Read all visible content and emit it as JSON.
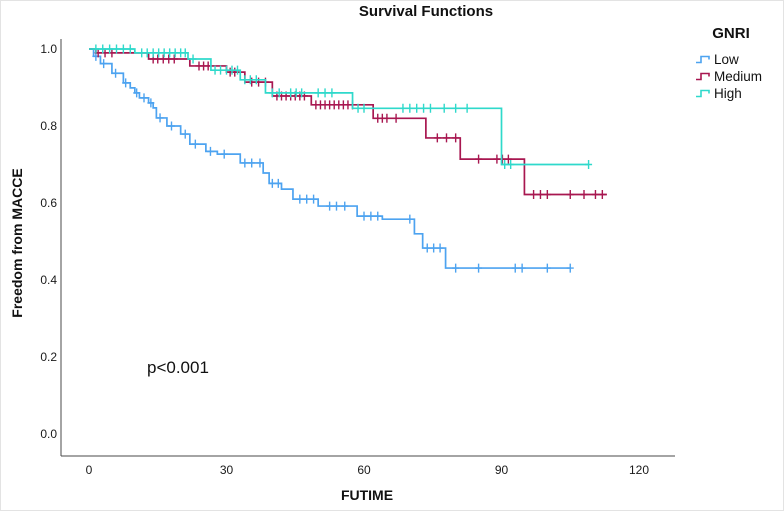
{
  "title": "Survival Functions",
  "annotation": "p<0.001",
  "legend": {
    "title": "GNRI",
    "items": [
      {
        "label": "Low",
        "color": "#4da3f0"
      },
      {
        "label": "Medium",
        "color": "#a81750"
      },
      {
        "label": "High",
        "color": "#2fd9cb"
      }
    ]
  },
  "axes": {
    "x_label": "FUTIME",
    "y_label": "Freedom from MACCE"
  },
  "chart_data": {
    "type": "line",
    "subtype": "kaplan-meier-step",
    "title": "Survival Functions",
    "xlabel": "FUTIME",
    "ylabel": "Freedom from MACCE",
    "xlim": [
      0,
      128
    ],
    "ylim": [
      0,
      1.05
    ],
    "x_ticks": [
      0,
      30,
      60,
      90,
      120
    ],
    "y_ticks": [
      0.0,
      0.2,
      0.4,
      0.6,
      0.8,
      1.0
    ],
    "grid": false,
    "legend_position": "right",
    "annotation": "p<0.001",
    "axis_color": "#4a4a4a",
    "series": [
      {
        "name": "Low",
        "color": "#4da3f0",
        "end_t": 105,
        "points": [
          [
            0,
            1.0
          ],
          [
            1,
            0.981
          ],
          [
            2.5,
            0.962
          ],
          [
            5,
            0.937
          ],
          [
            7.5,
            0.912
          ],
          [
            9,
            0.899
          ],
          [
            10,
            0.886
          ],
          [
            11,
            0.873
          ],
          [
            13,
            0.86
          ],
          [
            14,
            0.847
          ],
          [
            14.7,
            0.821
          ],
          [
            17,
            0.8
          ],
          [
            20,
            0.779
          ],
          [
            22,
            0.753
          ],
          [
            25.5,
            0.734
          ],
          [
            28,
            0.727
          ],
          [
            33,
            0.704
          ],
          [
            38,
            0.678
          ],
          [
            39.3,
            0.651
          ],
          [
            42,
            0.636
          ],
          [
            44.5,
            0.61
          ],
          [
            50,
            0.592
          ],
          [
            58.5,
            0.566
          ],
          [
            64,
            0.558
          ],
          [
            71,
            0.52
          ],
          [
            72.8,
            0.483
          ],
          [
            77.8,
            0.431
          ]
        ],
        "censors": [
          [
            1.5,
            0.981
          ],
          [
            3.2,
            0.962
          ],
          [
            5.8,
            0.937
          ],
          [
            8,
            0.912
          ],
          [
            10.4,
            0.886
          ],
          [
            12,
            0.873
          ],
          [
            13.5,
            0.86
          ],
          [
            15.5,
            0.821
          ],
          [
            18,
            0.8
          ],
          [
            21,
            0.779
          ],
          [
            23.2,
            0.753
          ],
          [
            26.5,
            0.734
          ],
          [
            29.5,
            0.727
          ],
          [
            34,
            0.704
          ],
          [
            35.5,
            0.704
          ],
          [
            37.3,
            0.704
          ],
          [
            40,
            0.651
          ],
          [
            41.3,
            0.651
          ],
          [
            46,
            0.61
          ],
          [
            47.5,
            0.61
          ],
          [
            49,
            0.61
          ],
          [
            52.5,
            0.592
          ],
          [
            54,
            0.592
          ],
          [
            55.8,
            0.592
          ],
          [
            60,
            0.566
          ],
          [
            61.5,
            0.566
          ],
          [
            63,
            0.566
          ],
          [
            70,
            0.558
          ],
          [
            73.8,
            0.483
          ],
          [
            75.2,
            0.483
          ],
          [
            76.6,
            0.483
          ],
          [
            80,
            0.431
          ],
          [
            85,
            0.431
          ],
          [
            93,
            0.431
          ],
          [
            94.5,
            0.431
          ],
          [
            100,
            0.431
          ],
          [
            105,
            0.431
          ]
        ]
      },
      {
        "name": "Medium",
        "color": "#a81750",
        "end_t": 113,
        "points": [
          [
            0,
            1.0
          ],
          [
            1.5,
            0.99
          ],
          [
            13,
            0.974
          ],
          [
            22,
            0.956
          ],
          [
            30,
            0.94
          ],
          [
            34,
            0.914
          ],
          [
            40,
            0.878
          ],
          [
            48.5,
            0.855
          ],
          [
            62,
            0.82
          ],
          [
            73.5,
            0.769
          ],
          [
            81,
            0.714
          ],
          [
            95,
            0.622
          ]
        ],
        "censors": [
          [
            2,
            0.99
          ],
          [
            3.5,
            0.99
          ],
          [
            5,
            0.99
          ],
          [
            14,
            0.974
          ],
          [
            15,
            0.974
          ],
          [
            16.2,
            0.974
          ],
          [
            17.4,
            0.974
          ],
          [
            18.6,
            0.974
          ],
          [
            24,
            0.956
          ],
          [
            25,
            0.956
          ],
          [
            26,
            0.956
          ],
          [
            30.8,
            0.94
          ],
          [
            31.8,
            0.94
          ],
          [
            35.5,
            0.914
          ],
          [
            37,
            0.914
          ],
          [
            38.5,
            0.914
          ],
          [
            41,
            0.878
          ],
          [
            42,
            0.878
          ],
          [
            43,
            0.878
          ],
          [
            44,
            0.878
          ],
          [
            45,
            0.878
          ],
          [
            46,
            0.878
          ],
          [
            47,
            0.878
          ],
          [
            49.5,
            0.855
          ],
          [
            50.5,
            0.855
          ],
          [
            51.5,
            0.855
          ],
          [
            52.5,
            0.855
          ],
          [
            53.5,
            0.855
          ],
          [
            54.5,
            0.855
          ],
          [
            55.5,
            0.855
          ],
          [
            56.5,
            0.855
          ],
          [
            57.5,
            0.855
          ],
          [
            63,
            0.82
          ],
          [
            64,
            0.82
          ],
          [
            65,
            0.82
          ],
          [
            67,
            0.82
          ],
          [
            76,
            0.769
          ],
          [
            78,
            0.769
          ],
          [
            80,
            0.769
          ],
          [
            85,
            0.714
          ],
          [
            89,
            0.714
          ],
          [
            90.2,
            0.714
          ],
          [
            91.5,
            0.714
          ],
          [
            97,
            0.622
          ],
          [
            98.5,
            0.622
          ],
          [
            100,
            0.622
          ],
          [
            105,
            0.622
          ],
          [
            108,
            0.622
          ],
          [
            110.5,
            0.622
          ],
          [
            112,
            0.622
          ]
        ]
      },
      {
        "name": "High",
        "color": "#2fd9cb",
        "end_t": 109,
        "points": [
          [
            0,
            1.0
          ],
          [
            10,
            0.99
          ],
          [
            21.6,
            0.974
          ],
          [
            26.6,
            0.945
          ],
          [
            33,
            0.92
          ],
          [
            38.5,
            0.886
          ],
          [
            57.5,
            0.846
          ],
          [
            90,
            0.7
          ]
        ],
        "censors": [
          [
            1.5,
            1.0
          ],
          [
            3,
            1.0
          ],
          [
            4.5,
            1.0
          ],
          [
            6,
            1.0
          ],
          [
            7.5,
            1.0
          ],
          [
            9,
            1.0
          ],
          [
            11.5,
            0.99
          ],
          [
            12.7,
            0.99
          ],
          [
            14,
            0.99
          ],
          [
            15.2,
            0.99
          ],
          [
            16.4,
            0.99
          ],
          [
            17.6,
            0.99
          ],
          [
            18.8,
            0.99
          ],
          [
            20,
            0.99
          ],
          [
            21,
            0.99
          ],
          [
            22.7,
            0.974
          ],
          [
            27.5,
            0.945
          ],
          [
            28.7,
            0.945
          ],
          [
            30,
            0.945
          ],
          [
            31.2,
            0.945
          ],
          [
            32.4,
            0.945
          ],
          [
            34,
            0.92
          ],
          [
            35.2,
            0.92
          ],
          [
            36.5,
            0.92
          ],
          [
            40,
            0.886
          ],
          [
            41.5,
            0.886
          ],
          [
            44,
            0.886
          ],
          [
            45.2,
            0.886
          ],
          [
            46.4,
            0.886
          ],
          [
            50,
            0.886
          ],
          [
            51.5,
            0.886
          ],
          [
            53,
            0.886
          ],
          [
            58.7,
            0.846
          ],
          [
            60,
            0.846
          ],
          [
            68.5,
            0.846
          ],
          [
            70,
            0.846
          ],
          [
            71.5,
            0.846
          ],
          [
            73,
            0.846
          ],
          [
            74.5,
            0.846
          ],
          [
            77.5,
            0.846
          ],
          [
            80,
            0.846
          ],
          [
            82.5,
            0.846
          ],
          [
            90.7,
            0.7
          ],
          [
            92,
            0.7
          ],
          [
            109,
            0.7
          ]
        ]
      }
    ]
  }
}
